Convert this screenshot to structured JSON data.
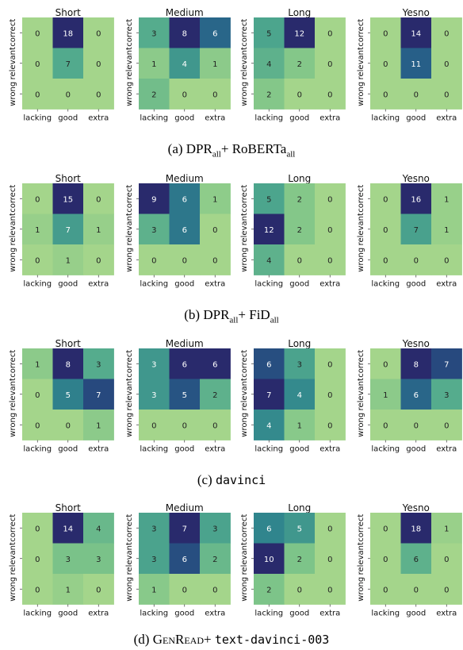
{
  "labels": {
    "rows": [
      "correct",
      "relevant",
      "wrong"
    ],
    "cols": [
      "lacking",
      "good",
      "extra"
    ],
    "titles": [
      "Short",
      "Medium",
      "Long",
      "Yesno"
    ]
  },
  "captions": [
    {
      "letter": "(a)",
      "main": "DPR",
      "sub1": "all",
      "plus": "+ RoBERTa",
      "sub2": "all"
    },
    {
      "letter": "(b)",
      "main": "DPR",
      "sub1": "all",
      "plus": "+ FiD",
      "sub2": "all"
    },
    {
      "letter": "(c)",
      "model": "davinci"
    },
    {
      "letter": "(d)",
      "gen": "GenRead",
      "plus": "+",
      "model": "text-davinci-003"
    }
  ],
  "chart_data": [
    {
      "type": "heatmap",
      "title": "Short",
      "system": "(a) DPR_all + RoBERTa_all",
      "rows": [
        "correct",
        "relevant",
        "wrong"
      ],
      "cols": [
        "lacking",
        "good",
        "extra"
      ],
      "values": [
        [
          0,
          18,
          0
        ],
        [
          0,
          7,
          0
        ],
        [
          0,
          0,
          0
        ]
      ]
    },
    {
      "type": "heatmap",
      "title": "Medium",
      "system": "(a) DPR_all + RoBERTa_all",
      "rows": [
        "correct",
        "relevant",
        "wrong"
      ],
      "cols": [
        "lacking",
        "good",
        "extra"
      ],
      "values": [
        [
          3,
          8,
          6
        ],
        [
          1,
          4,
          1
        ],
        [
          2,
          0,
          0
        ]
      ]
    },
    {
      "type": "heatmap",
      "title": "Long",
      "system": "(a) DPR_all + RoBERTa_all",
      "rows": [
        "correct",
        "relevant",
        "wrong"
      ],
      "cols": [
        "lacking",
        "good",
        "extra"
      ],
      "values": [
        [
          5,
          12,
          0
        ],
        [
          4,
          2,
          0
        ],
        [
          2,
          0,
          0
        ]
      ]
    },
    {
      "type": "heatmap",
      "title": "Yesno",
      "system": "(a) DPR_all + RoBERTa_all",
      "rows": [
        "correct",
        "relevant",
        "wrong"
      ],
      "cols": [
        "lacking",
        "good",
        "extra"
      ],
      "values": [
        [
          0,
          14,
          0
        ],
        [
          0,
          11,
          0
        ],
        [
          0,
          0,
          0
        ]
      ]
    },
    {
      "type": "heatmap",
      "title": "Short",
      "system": "(b) DPR_all + FiD_all",
      "rows": [
        "correct",
        "relevant",
        "wrong"
      ],
      "cols": [
        "lacking",
        "good",
        "extra"
      ],
      "values": [
        [
          0,
          15,
          0
        ],
        [
          1,
          7,
          1
        ],
        [
          0,
          1,
          0
        ]
      ]
    },
    {
      "type": "heatmap",
      "title": "Medium",
      "system": "(b) DPR_all + FiD_all",
      "rows": [
        "correct",
        "relevant",
        "wrong"
      ],
      "cols": [
        "lacking",
        "good",
        "extra"
      ],
      "values": [
        [
          9,
          6,
          1
        ],
        [
          3,
          6,
          0
        ],
        [
          0,
          0,
          0
        ]
      ]
    },
    {
      "type": "heatmap",
      "title": "Long",
      "system": "(b) DPR_all + FiD_all",
      "rows": [
        "correct",
        "relevant",
        "wrong"
      ],
      "cols": [
        "lacking",
        "good",
        "extra"
      ],
      "values": [
        [
          5,
          2,
          0
        ],
        [
          12,
          2,
          0
        ],
        [
          4,
          0,
          0
        ]
      ]
    },
    {
      "type": "heatmap",
      "title": "Yesno",
      "system": "(b) DPR_all + FiD_all",
      "rows": [
        "correct",
        "relevant",
        "wrong"
      ],
      "cols": [
        "lacking",
        "good",
        "extra"
      ],
      "values": [
        [
          0,
          16,
          1
        ],
        [
          0,
          7,
          1
        ],
        [
          0,
          0,
          0
        ]
      ]
    },
    {
      "type": "heatmap",
      "title": "Short",
      "system": "(c) davinci",
      "rows": [
        "correct",
        "relevant",
        "wrong"
      ],
      "cols": [
        "lacking",
        "good",
        "extra"
      ],
      "values": [
        [
          1,
          8,
          3
        ],
        [
          0,
          5,
          7
        ],
        [
          0,
          0,
          1
        ]
      ]
    },
    {
      "type": "heatmap",
      "title": "Medium",
      "system": "(c) davinci",
      "rows": [
        "correct",
        "relevant",
        "wrong"
      ],
      "cols": [
        "lacking",
        "good",
        "extra"
      ],
      "values": [
        [
          3,
          6,
          6
        ],
        [
          3,
          5,
          2
        ],
        [
          0,
          0,
          0
        ]
      ]
    },
    {
      "type": "heatmap",
      "title": "Long",
      "system": "(c) davinci",
      "rows": [
        "correct",
        "relevant",
        "wrong"
      ],
      "cols": [
        "lacking",
        "good",
        "extra"
      ],
      "values": [
        [
          6,
          3,
          0
        ],
        [
          7,
          4,
          0
        ],
        [
          4,
          1,
          0
        ]
      ]
    },
    {
      "type": "heatmap",
      "title": "Yesno",
      "system": "(c) davinci",
      "rows": [
        "correct",
        "relevant",
        "wrong"
      ],
      "cols": [
        "lacking",
        "good",
        "extra"
      ],
      "values": [
        [
          0,
          8,
          7
        ],
        [
          1,
          6,
          3
        ],
        [
          0,
          0,
          0
        ]
      ]
    },
    {
      "type": "heatmap",
      "title": "Short",
      "system": "(d) GenRead + text-davinci-003",
      "rows": [
        "correct",
        "relevant",
        "wrong"
      ],
      "cols": [
        "lacking",
        "good",
        "extra"
      ],
      "values": [
        [
          0,
          14,
          4
        ],
        [
          0,
          3,
          3
        ],
        [
          0,
          1,
          0
        ]
      ]
    },
    {
      "type": "heatmap",
      "title": "Medium",
      "system": "(d) GenRead + text-davinci-003",
      "rows": [
        "correct",
        "relevant",
        "wrong"
      ],
      "cols": [
        "lacking",
        "good",
        "extra"
      ],
      "values": [
        [
          3,
          7,
          3
        ],
        [
          3,
          6,
          2
        ],
        [
          1,
          0,
          0
        ]
      ]
    },
    {
      "type": "heatmap",
      "title": "Long",
      "system": "(d) GenRead + text-davinci-003",
      "rows": [
        "correct",
        "relevant",
        "wrong"
      ],
      "cols": [
        "lacking",
        "good",
        "extra"
      ],
      "values": [
        [
          6,
          5,
          0
        ],
        [
          10,
          2,
          0
        ],
        [
          2,
          0,
          0
        ]
      ]
    },
    {
      "type": "heatmap",
      "title": "Yesno",
      "system": "(d) GenRead + text-davinci-003",
      "rows": [
        "correct",
        "relevant",
        "wrong"
      ],
      "cols": [
        "lacking",
        "good",
        "extra"
      ],
      "values": [
        [
          0,
          18,
          1
        ],
        [
          0,
          6,
          0
        ],
        [
          0,
          0,
          0
        ]
      ]
    }
  ]
}
